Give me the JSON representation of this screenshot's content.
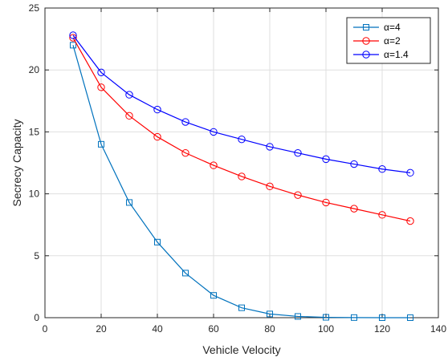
{
  "chart_data": {
    "type": "line",
    "title": "",
    "xlabel": "Vehicle Velocity",
    "ylabel": "Secrecy Capacity",
    "xlim": [
      0,
      140
    ],
    "ylim": [
      0,
      25
    ],
    "xticks": [
      0,
      20,
      40,
      60,
      80,
      100,
      120,
      140
    ],
    "yticks": [
      0,
      5,
      10,
      15,
      20,
      25
    ],
    "grid": true,
    "legend_position": "top-right",
    "x": [
      10,
      20,
      30,
      40,
      50,
      60,
      70,
      80,
      90,
      100,
      110,
      120,
      130
    ],
    "series": [
      {
        "name": "α=4",
        "marker": "square",
        "color": "#0072BD",
        "values": [
          22.0,
          14.0,
          9.3,
          6.1,
          3.6,
          1.8,
          0.8,
          0.3,
          0.1,
          0.03,
          0.01,
          0.0,
          0.0
        ]
      },
      {
        "name": "α=2",
        "marker": "circle",
        "color": "#FF0000",
        "values": [
          22.6,
          18.6,
          16.3,
          14.6,
          13.3,
          12.3,
          11.4,
          10.6,
          9.9,
          9.3,
          8.8,
          8.3,
          7.8
        ]
      },
      {
        "name": "α=1.4",
        "marker": "circle",
        "color": "#0000FF",
        "values": [
          22.8,
          19.8,
          18.0,
          16.8,
          15.8,
          15.0,
          14.4,
          13.8,
          13.3,
          12.8,
          12.4,
          12.0,
          11.7
        ]
      }
    ]
  }
}
